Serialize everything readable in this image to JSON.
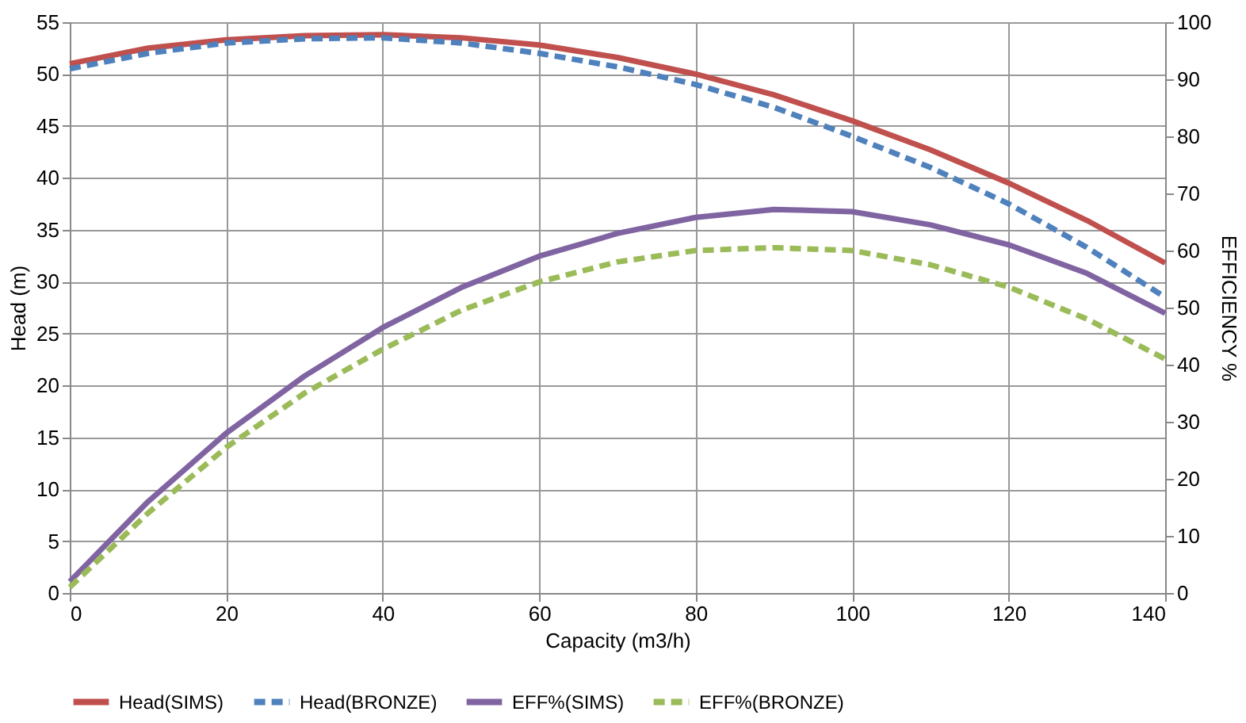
{
  "chart_data": {
    "type": "line",
    "xlabel": "Capacity (m3/h)",
    "ylabel": "Head (m)",
    "y2label": "EFFICIENCY %",
    "xlim": [
      0,
      140
    ],
    "xticks": [
      0,
      20,
      40,
      60,
      80,
      100,
      120,
      140
    ],
    "ylim": [
      0,
      55
    ],
    "yticks": [
      0,
      5,
      10,
      15,
      20,
      25,
      30,
      35,
      40,
      45,
      50,
      55
    ],
    "y2lim": [
      0,
      100
    ],
    "y2ticks": [
      0,
      10,
      20,
      30,
      40,
      50,
      60,
      70,
      80,
      90,
      100
    ],
    "grid": true,
    "legend": "bottom",
    "marker": "none",
    "x": [
      0,
      10,
      20,
      30,
      40,
      50,
      60,
      70,
      80,
      90,
      100,
      110,
      120,
      130,
      140
    ],
    "series": [
      {
        "name": "Head(SIMS)",
        "color": "#c0504d",
        "line_style": "solid",
        "values": [
          51,
          52.5,
          53.3,
          53.7,
          53.8,
          53.5,
          52.8,
          51.6,
          50,
          48,
          45.5,
          42.7,
          39.5,
          35.9,
          31.8
        ]
      },
      {
        "name": "Head(BRONZE)",
        "color": "#4f81bd",
        "line_style": "dashed",
        "values": [
          50.5,
          52,
          53,
          53.4,
          53.5,
          53,
          52,
          50.7,
          49,
          46.8,
          44,
          41,
          37.5,
          33.3,
          28.5
        ]
      },
      {
        "name": "EFF%(SIMS)",
        "color": "#8064a2",
        "line_style": "solid",
        "axis": "y2",
        "values": [
          2,
          16,
          28,
          38,
          46.5,
          53.5,
          59,
          63,
          65.8,
          67.2,
          66.8,
          64.5,
          61,
          56,
          49
        ]
      },
      {
        "name": "EFF%(BRONZE)",
        "color": "#9bbb59",
        "line_style": "dashed",
        "axis": "y2",
        "values": [
          1,
          14,
          25.5,
          35,
          42.7,
          49.5,
          54.5,
          58,
          60,
          60.5,
          60,
          57.5,
          53.6,
          48,
          41
        ]
      }
    ]
  }
}
